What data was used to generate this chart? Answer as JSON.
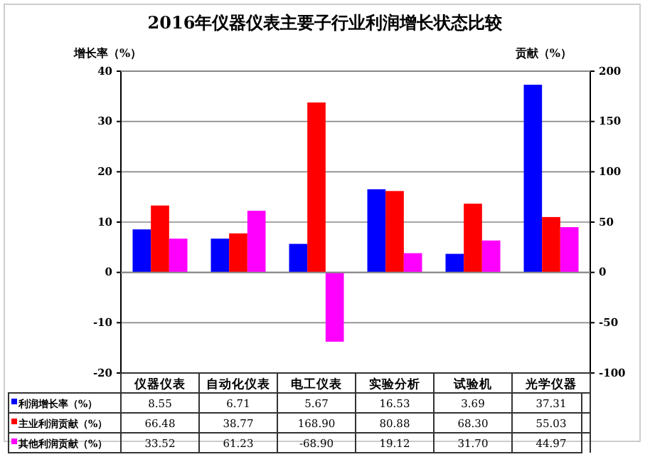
{
  "chart_data": {
    "type": "bar",
    "title": "2016年仪器仪表主要子行业利润增长状态比较",
    "ylabel": "增长率（%）",
    "y2label": "贡献（%）",
    "categories": [
      "仪器仪表",
      "自动化仪表",
      "电工仪表",
      "实验分析",
      "试验机",
      "光学仪器"
    ],
    "series": [
      {
        "name": "利润增长率（%）",
        "color": "#0000ff",
        "values": [
          8.55,
          6.71,
          5.67,
          16.53,
          3.69,
          37.31
        ],
        "value_labels": [
          "8.55",
          "6.71",
          "5.67",
          "16.53",
          "3.69",
          "37.31"
        ]
      },
      {
        "name": "主业利润贡献（%）",
        "color": "#ff0000",
        "axis": "y2",
        "values": [
          66.48,
          38.77,
          168.9,
          80.88,
          68.3,
          55.03
        ],
        "value_labels": [
          "66.48",
          "38.77",
          "168.90",
          "80.88",
          "68.30",
          "55.03"
        ]
      },
      {
        "name": "其他利润贡献（%）",
        "color": "#ff00ff",
        "axis": "y2",
        "values": [
          33.52,
          61.23,
          -68.9,
          19.12,
          31.7,
          44.97
        ],
        "value_labels": [
          "33.52",
          "61.23",
          "-68.90",
          "19.12",
          "31.70",
          "44.97"
        ]
      }
    ],
    "ylim": [
      -20,
      40
    ],
    "yticks": [
      -20,
      -10,
      0,
      10,
      20,
      30,
      40
    ],
    "y2lim": [
      -100,
      200
    ],
    "y2ticks": [
      -100,
      -50,
      0,
      50,
      100,
      150,
      200
    ],
    "grid": "y",
    "legend": "bottom"
  }
}
